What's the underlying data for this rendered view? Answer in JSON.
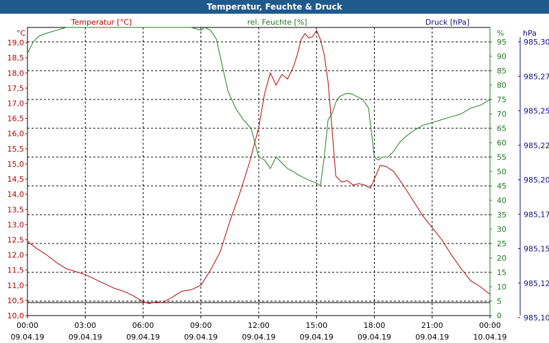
{
  "window": {
    "title": "Temperatur, Feuchte & Druck"
  },
  "legend": {
    "temperature": "Temperatur [°C]",
    "humidity": "rel. Feuchte [%]",
    "pressure": "Druck [hPa]"
  },
  "units": {
    "left": "°C",
    "right1": "%",
    "right2": "hPa"
  },
  "colors": {
    "temperature": "#b40000",
    "humidity": "#1e7a1e",
    "pressure": "#101080",
    "title_bar": "#1f5a8c"
  },
  "chart_data": {
    "type": "line",
    "title": "Temperatur, Feuchte & Druck",
    "grid": true,
    "x": {
      "range": [
        0,
        24
      ],
      "ticks": [
        0,
        3,
        6,
        9,
        12,
        15,
        18,
        21,
        24
      ],
      "time_labels": [
        "00:00",
        "03:00",
        "06:00",
        "09:00",
        "12:00",
        "15:00",
        "18:00",
        "21:00",
        "00:00"
      ],
      "date_labels": [
        "09.04.19",
        "09.04.19",
        "09.04.19",
        "09.04.19",
        "09.04.19",
        "09.04.19",
        "09.04.19",
        "09.04.19",
        "10.04.19"
      ]
    },
    "y_left": {
      "unit": "°C",
      "range": [
        10.0,
        19.5
      ],
      "ticks": [
        "10,0",
        "10,5",
        "11,0",
        "11,5",
        "12,0",
        "12,5",
        "13,0",
        "13,5",
        "14,0",
        "14,5",
        "15,0",
        "15,5",
        "16,0",
        "16,5",
        "17,0",
        "17,5",
        "18,0",
        "18,5",
        "19,0"
      ]
    },
    "y_right1": {
      "unit": "%",
      "range": [
        0,
        100
      ],
      "ticks": [
        "0",
        "5",
        "10",
        "15",
        "20",
        "25",
        "30",
        "35",
        "40",
        "45",
        "50",
        "55",
        "60",
        "65",
        "70",
        "75",
        "80",
        "85",
        "90",
        "95"
      ]
    },
    "y_right2": {
      "unit": "hPa",
      "ticks": [
        "985,10",
        "985,12",
        "985,15",
        "985,17",
        "985,20",
        "985,22",
        "985,25",
        "985,27",
        "985,30"
      ]
    },
    "series": [
      {
        "name": "Temperatur [°C]",
        "axis": "left",
        "x": [
          0,
          0.5,
          1,
          1.5,
          2,
          2.5,
          3,
          3.5,
          4,
          4.5,
          5,
          5.5,
          6,
          6.3,
          6.7,
          7,
          7.5,
          8,
          8.5,
          9,
          9.5,
          10,
          10.5,
          11,
          11.5,
          12,
          12.3,
          12.6,
          12.9,
          13.2,
          13.5,
          13.8,
          14,
          14.2,
          14.4,
          14.6,
          14.8,
          15,
          15.2,
          15.4,
          15.6,
          15.8,
          16,
          16.3,
          16.6,
          16.9,
          17.2,
          17.5,
          17.8,
          18,
          18.3,
          18.6,
          19,
          19.5,
          20,
          20.5,
          21,
          21.5,
          22,
          22.5,
          23,
          23.5,
          24
        ],
        "y": [
          12.45,
          12.2,
          12.0,
          11.75,
          11.55,
          11.45,
          11.35,
          11.2,
          11.05,
          10.9,
          10.8,
          10.65,
          10.45,
          10.4,
          10.45,
          10.42,
          10.6,
          10.8,
          10.85,
          11.0,
          11.5,
          12.1,
          13.1,
          14.0,
          15.0,
          16.2,
          17.3,
          18.0,
          17.6,
          17.95,
          17.8,
          18.2,
          18.6,
          19.1,
          19.3,
          19.15,
          19.2,
          19.4,
          19.1,
          18.6,
          17.7,
          16.2,
          14.6,
          14.4,
          14.45,
          14.3,
          14.35,
          14.3,
          14.2,
          14.5,
          14.95,
          14.92,
          14.75,
          14.3,
          13.8,
          13.3,
          12.9,
          12.5,
          12.0,
          11.55,
          11.15,
          10.95,
          10.7
        ]
      },
      {
        "name": "rel. Feuchte [%]",
        "axis": "right1",
        "x": [
          0,
          0.3,
          0.6,
          1,
          1.5,
          2,
          2.5,
          3,
          6,
          8.5,
          9,
          9.2,
          9.5,
          9.8,
          10,
          10.4,
          10.8,
          11.2,
          11.6,
          11.8,
          12,
          12.3,
          12.6,
          12.9,
          13.2,
          13.5,
          13.8,
          14,
          14.3,
          14.6,
          15,
          15.2,
          15.4,
          15.6,
          15.8,
          16,
          16.2,
          16.5,
          16.8,
          17.1,
          17.4,
          17.7,
          18,
          18.2,
          18.4,
          18.7,
          19,
          19.3,
          19.6,
          20,
          20.5,
          21,
          21.5,
          22,
          22.5,
          23,
          23.5,
          24
        ],
        "y": [
          91,
          95,
          97,
          98,
          99,
          100,
          100,
          100,
          100,
          100,
          99,
          100,
          99,
          96,
          90,
          78,
          72,
          68,
          65,
          60,
          55,
          54,
          51,
          55,
          53,
          51,
          50,
          49,
          48,
          47,
          46,
          45,
          55,
          68,
          70,
          74,
          76,
          77,
          77,
          76,
          75,
          72,
          55,
          54,
          55,
          55,
          57,
          60,
          62,
          64,
          66,
          67,
          68,
          69,
          70,
          72,
          73,
          75
        ]
      }
    ],
    "reference_lines": [
      {
        "axis": "right1",
        "value": 4.5
      }
    ]
  }
}
